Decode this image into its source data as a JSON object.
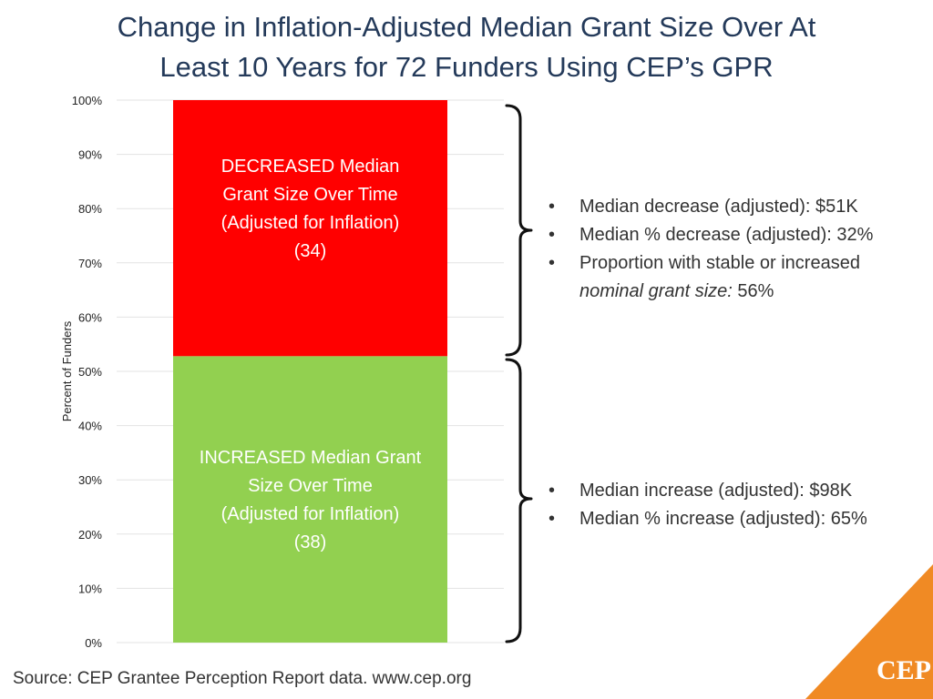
{
  "title_lines": [
    "Change in Inflation-Adjusted Median Grant Size Over At",
    "Least 10 Years for 72 Funders Using CEP’s GPR"
  ],
  "chart_data": {
    "type": "bar",
    "stacked": true,
    "categories": [
      ""
    ],
    "ylabel": "Percent of Funders",
    "ylim": [
      0,
      100
    ],
    "yticks": [
      0,
      10,
      20,
      30,
      40,
      50,
      60,
      70,
      80,
      90,
      100
    ],
    "tick_suffix": "%",
    "grid": true,
    "series": [
      {
        "name": "INCREASED Median Grant Size Over Time (Adjusted for Inflation)",
        "count": 38,
        "value": 52.8,
        "color": "#92d050",
        "label_lines": [
          "INCREASED Median Grant",
          "Size Over Time",
          "(Adjusted for Inflation)",
          "(38)"
        ]
      },
      {
        "name": "DECREASED Median Grant Size Over Time (Adjusted for Inflation)",
        "count": 34,
        "value": 47.2,
        "color": "#ff0000",
        "label_lines": [
          "DECREASED Median",
          "Grant Size Over Time",
          "(Adjusted for Inflation)",
          "(34)"
        ]
      }
    ]
  },
  "notes_decreased": {
    "item1": "Median decrease (adjusted): $51K",
    "item2": "Median % decrease (adjusted): 32%",
    "item3_text": "Proportion with stable or increased",
    "item3_italic": "nominal grant size:",
    "item3_value": " 56%"
  },
  "notes_increased": {
    "item1": "Median increase (adjusted): $98K",
    "item2": "Median % increase (adjusted): 65%"
  },
  "source": "Source: CEP Grantee Perception Report data. www.cep.org",
  "logo": {
    "text": "CEP",
    "color": "#f08a24"
  }
}
